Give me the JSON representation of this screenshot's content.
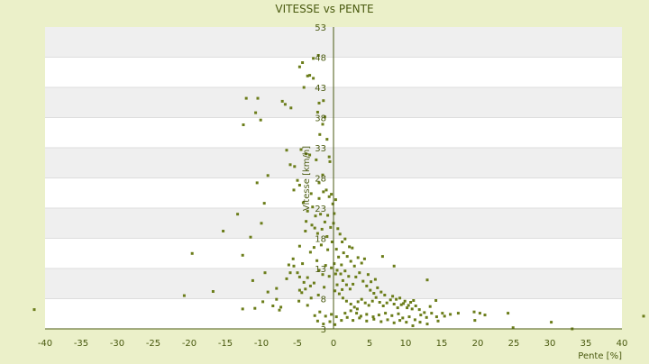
{
  "chart_data": {
    "type": "scatter",
    "title": "VITESSE vs PENTE",
    "xlabel": "Pente [%]",
    "ylabel": "Vitesse [km/h]",
    "xlim": [
      -40,
      40
    ],
    "ylim": [
      3,
      53
    ],
    "x_ticks": [
      "-40",
      "-35",
      "-30",
      "-25",
      "-20",
      "-15",
      "-10",
      "-5",
      "0",
      "5",
      "10",
      "15",
      "20",
      "25",
      "30",
      "35",
      "40"
    ],
    "y_ticks": [
      "3",
      "8",
      "13",
      "18",
      "23",
      "28",
      "33",
      "38",
      "43",
      "48",
      "53"
    ],
    "grid": "horizontal bands",
    "legend": "none",
    "colors": {
      "background": "#ebf0c9",
      "plot_band_light": "#ffffff",
      "plot_band_dark": "#efefef",
      "point": "#6b7d1a",
      "axis": "#4a5a10",
      "text": "#4a5a10"
    },
    "series": [
      {
        "points": [
          [
            -41.5,
            6.2
          ],
          [
            -20.7,
            8.5
          ],
          [
            -16.7,
            9.2
          ],
          [
            -12.6,
            6.3
          ],
          [
            -10.9,
            6.4
          ],
          [
            -9.8,
            7.5
          ],
          [
            -8.4,
            6.8
          ],
          [
            -7.9,
            7.9
          ],
          [
            -7.5,
            6.1
          ],
          [
            -10.0,
            20.5
          ],
          [
            -11.5,
            18.2
          ],
          [
            -10.6,
            27.2
          ],
          [
            -12.6,
            15.2
          ],
          [
            -13.3,
            22.0
          ],
          [
            -15.3,
            19.2
          ],
          [
            -19.6,
            15.5
          ],
          [
            -9.6,
            23.8
          ],
          [
            -9.1,
            28.4
          ],
          [
            -11.2,
            11.0
          ],
          [
            -9.5,
            12.3
          ],
          [
            -6.0,
            12.3
          ],
          [
            -12.5,
            36.8
          ],
          [
            -10.8,
            38.8
          ],
          [
            -10.1,
            37.6
          ],
          [
            -12.1,
            41.2
          ],
          [
            -10.5,
            41.2
          ],
          [
            -7.1,
            40.7
          ],
          [
            -6.7,
            40.2
          ],
          [
            -5.9,
            39.6
          ],
          [
            -4.1,
            43.0
          ],
          [
            -3.6,
            44.9
          ],
          [
            -4.7,
            46.4
          ],
          [
            -4.3,
            47.1
          ],
          [
            -2.8,
            47.8
          ],
          [
            -2.1,
            48.3
          ],
          [
            -3.3,
            45.0
          ],
          [
            -2.8,
            44.5
          ],
          [
            -2.2,
            38.9
          ],
          [
            -2.0,
            40.4
          ],
          [
            -1.4,
            40.8
          ],
          [
            -1.2,
            38.1
          ],
          [
            -1.9,
            35.2
          ],
          [
            -1.5,
            36.9
          ],
          [
            -0.9,
            34.4
          ],
          [
            -0.6,
            31.5
          ],
          [
            -0.5,
            30.7
          ],
          [
            -4.5,
            32.7
          ],
          [
            -3.8,
            32.0
          ],
          [
            -3.3,
            31.8
          ],
          [
            -6.5,
            32.6
          ],
          [
            -6.0,
            30.2
          ],
          [
            -5.4,
            29.9
          ],
          [
            -4.7,
            26.8
          ],
          [
            -5.0,
            27.6
          ],
          [
            -5.5,
            26.0
          ],
          [
            -2.4,
            31.0
          ],
          [
            -2.0,
            27.2
          ],
          [
            -1.5,
            28.5
          ],
          [
            -1.0,
            26.0
          ],
          [
            -0.6,
            24.9
          ],
          [
            -0.3,
            25.3
          ],
          [
            -0.1,
            23.7
          ],
          [
            0.1,
            22.1
          ],
          [
            0.3,
            24.4
          ],
          [
            -4.2,
            23.9
          ],
          [
            -3.6,
            22.5
          ],
          [
            -2.9,
            23.2
          ],
          [
            -2.5,
            21.7
          ],
          [
            -1.8,
            22.0
          ],
          [
            -1.2,
            20.7
          ],
          [
            -0.8,
            21.8
          ],
          [
            -0.4,
            19.8
          ],
          [
            0.0,
            20.5
          ],
          [
            0.6,
            19.6
          ],
          [
            0.9,
            18.7
          ],
          [
            1.2,
            17.4
          ],
          [
            1.6,
            17.9
          ],
          [
            2.2,
            16.6
          ],
          [
            -3.0,
            20.2
          ],
          [
            -3.9,
            19.2
          ],
          [
            -2.2,
            18.8
          ],
          [
            -1.6,
            19.5
          ],
          [
            -0.9,
            18.3
          ],
          [
            -0.2,
            17.4
          ],
          [
            0.4,
            16.2
          ],
          [
            -4.7,
            16.7
          ],
          [
            -5.6,
            14.6
          ],
          [
            -4.3,
            13.8
          ],
          [
            -5.5,
            13.4
          ],
          [
            -6.2,
            13.6
          ],
          [
            -5.0,
            12.3
          ],
          [
            -4.7,
            11.6
          ],
          [
            -4.1,
            10.7
          ],
          [
            -4.7,
            9.4
          ],
          [
            -4.4,
            9.0
          ],
          [
            -3.2,
            10.1
          ],
          [
            -3.6,
            11.5
          ],
          [
            -2.0,
            12.7
          ],
          [
            -2.3,
            14.3
          ],
          [
            -1.1,
            13.5
          ],
          [
            -0.3,
            13.1
          ],
          [
            0.1,
            13.8
          ],
          [
            0.5,
            12.7
          ],
          [
            1.0,
            12.1
          ],
          [
            1.3,
            11.0
          ],
          [
            1.8,
            10.3
          ],
          [
            2.3,
            9.6
          ],
          [
            2.7,
            10.4
          ],
          [
            3.1,
            11.6
          ],
          [
            3.6,
            12.3
          ],
          [
            4.1,
            10.9
          ],
          [
            4.6,
            10.1
          ],
          [
            5.1,
            9.4
          ],
          [
            5.6,
            8.9
          ],
          [
            1.9,
            15.0
          ],
          [
            2.4,
            14.2
          ],
          [
            2.9,
            13.4
          ],
          [
            3.4,
            14.8
          ],
          [
            3.9,
            13.9
          ],
          [
            4.3,
            14.6
          ],
          [
            1.4,
            15.6
          ],
          [
            2.6,
            16.4
          ],
          [
            0.7,
            14.9
          ],
          [
            1.1,
            13.6
          ],
          [
            1.6,
            12.6
          ],
          [
            2.1,
            11.7
          ],
          [
            0.2,
            9.3
          ],
          [
            0.8,
            8.8
          ],
          [
            1.3,
            8.1
          ],
          [
            1.8,
            7.6
          ],
          [
            2.4,
            7.1
          ],
          [
            2.9,
            6.6
          ],
          [
            3.4,
            7.5
          ],
          [
            3.9,
            7.9
          ],
          [
            4.4,
            7.3
          ],
          [
            4.9,
            6.9
          ],
          [
            5.4,
            7.6
          ],
          [
            5.9,
            8.2
          ],
          [
            6.4,
            7.4
          ],
          [
            6.9,
            6.8
          ],
          [
            7.4,
            7.3
          ],
          [
            7.9,
            7.8
          ],
          [
            8.4,
            7.1
          ],
          [
            8.9,
            6.5
          ],
          [
            9.4,
            7.0
          ],
          [
            9.9,
            7.6
          ],
          [
            10.4,
            6.9
          ],
          [
            10.9,
            6.3
          ],
          [
            11.4,
            6.8
          ],
          [
            11.9,
            6.2
          ],
          [
            8.2,
            8.4
          ],
          [
            8.7,
            7.9
          ],
          [
            9.2,
            8.1
          ],
          [
            9.7,
            7.2
          ],
          [
            10.2,
            6.5
          ],
          [
            10.7,
            7.4
          ],
          [
            6.1,
            9.8
          ],
          [
            6.6,
            9.1
          ],
          [
            7.1,
            8.6
          ],
          [
            5.2,
            10.8
          ],
          [
            4.8,
            12.0
          ],
          [
            5.8,
            11.2
          ],
          [
            3.2,
            5.6
          ],
          [
            3.8,
            5.1
          ],
          [
            4.6,
            5.4
          ],
          [
            5.5,
            5.0
          ],
          [
            6.3,
            5.3
          ],
          [
            7.2,
            5.6
          ],
          [
            8.1,
            5.2
          ],
          [
            9.0,
            5.5
          ],
          [
            9.6,
            4.8
          ],
          [
            10.5,
            5.0
          ],
          [
            11.3,
            4.5
          ],
          [
            12.1,
            5.3
          ],
          [
            12.9,
            4.9
          ],
          [
            13.6,
            5.6
          ],
          [
            14.3,
            5.0
          ],
          [
            15.1,
            5.6
          ],
          [
            16.2,
            5.4
          ],
          [
            12.0,
            4.1
          ],
          [
            13.0,
            3.8
          ],
          [
            14.5,
            4.3
          ],
          [
            11.0,
            3.5
          ],
          [
            10.1,
            4.1
          ],
          [
            9.2,
            4.4
          ],
          [
            8.4,
            4.0
          ],
          [
            7.5,
            4.5
          ],
          [
            6.6,
            4.2
          ],
          [
            5.6,
            4.6
          ],
          [
            4.6,
            4.3
          ],
          [
            3.6,
            4.8
          ],
          [
            2.7,
            4.4
          ],
          [
            1.9,
            4.9
          ],
          [
            1.1,
            4.4
          ],
          [
            0.4,
            5.0
          ],
          [
            -0.3,
            5.4
          ],
          [
            -1.1,
            5.1
          ],
          [
            -1.9,
            5.8
          ],
          [
            -2.6,
            5.2
          ],
          [
            -2.2,
            4.3
          ],
          [
            -1.4,
            3.8
          ],
          [
            -0.5,
            4.2
          ],
          [
            0.2,
            3.7
          ],
          [
            1.6,
            5.6
          ],
          [
            2.4,
            6.0
          ],
          [
            3.3,
            6.3
          ],
          [
            14.2,
            7.7
          ],
          [
            13.4,
            6.7
          ],
          [
            11.1,
            7.7
          ],
          [
            12.6,
            5.7
          ],
          [
            15.4,
            5.1
          ],
          [
            17.3,
            5.6
          ],
          [
            19.5,
            5.8
          ],
          [
            20.3,
            5.6
          ],
          [
            21.0,
            5.3
          ],
          [
            24.2,
            5.6
          ],
          [
            19.6,
            4.4
          ],
          [
            24.9,
            3.2
          ],
          [
            30.2,
            4.1
          ],
          [
            33.1,
            3.0
          ],
          [
            43.0,
            5.1
          ],
          [
            13.0,
            11.1
          ],
          [
            8.4,
            13.4
          ],
          [
            6.8,
            15.0
          ],
          [
            -7.3,
            6.6
          ],
          [
            -9.1,
            9.1
          ],
          [
            -7.9,
            9.7
          ],
          [
            -6.5,
            11.3
          ],
          [
            -3.6,
            6.9
          ],
          [
            -4.8,
            7.6
          ],
          [
            -3.2,
            15.7
          ],
          [
            -2.7,
            16.5
          ],
          [
            -1.7,
            16.9
          ],
          [
            -0.8,
            16.1
          ],
          [
            0.5,
            10.3
          ],
          [
            1.2,
            9.5
          ],
          [
            -1.3,
            9.9
          ],
          [
            -2.1,
            8.6
          ],
          [
            -3.1,
            8.1
          ],
          [
            0.3,
            12.1
          ],
          [
            -0.6,
            11.7
          ],
          [
            -1.5,
            12.0
          ],
          [
            -2.7,
            10.6
          ],
          [
            -3.9,
            9.6
          ],
          [
            -2.0,
            24.6
          ],
          [
            -1.4,
            25.7
          ],
          [
            -3.1,
            25.4
          ],
          [
            -3.8,
            20.8
          ],
          [
            -2.6,
            19.7
          ]
        ]
      }
    ]
  }
}
